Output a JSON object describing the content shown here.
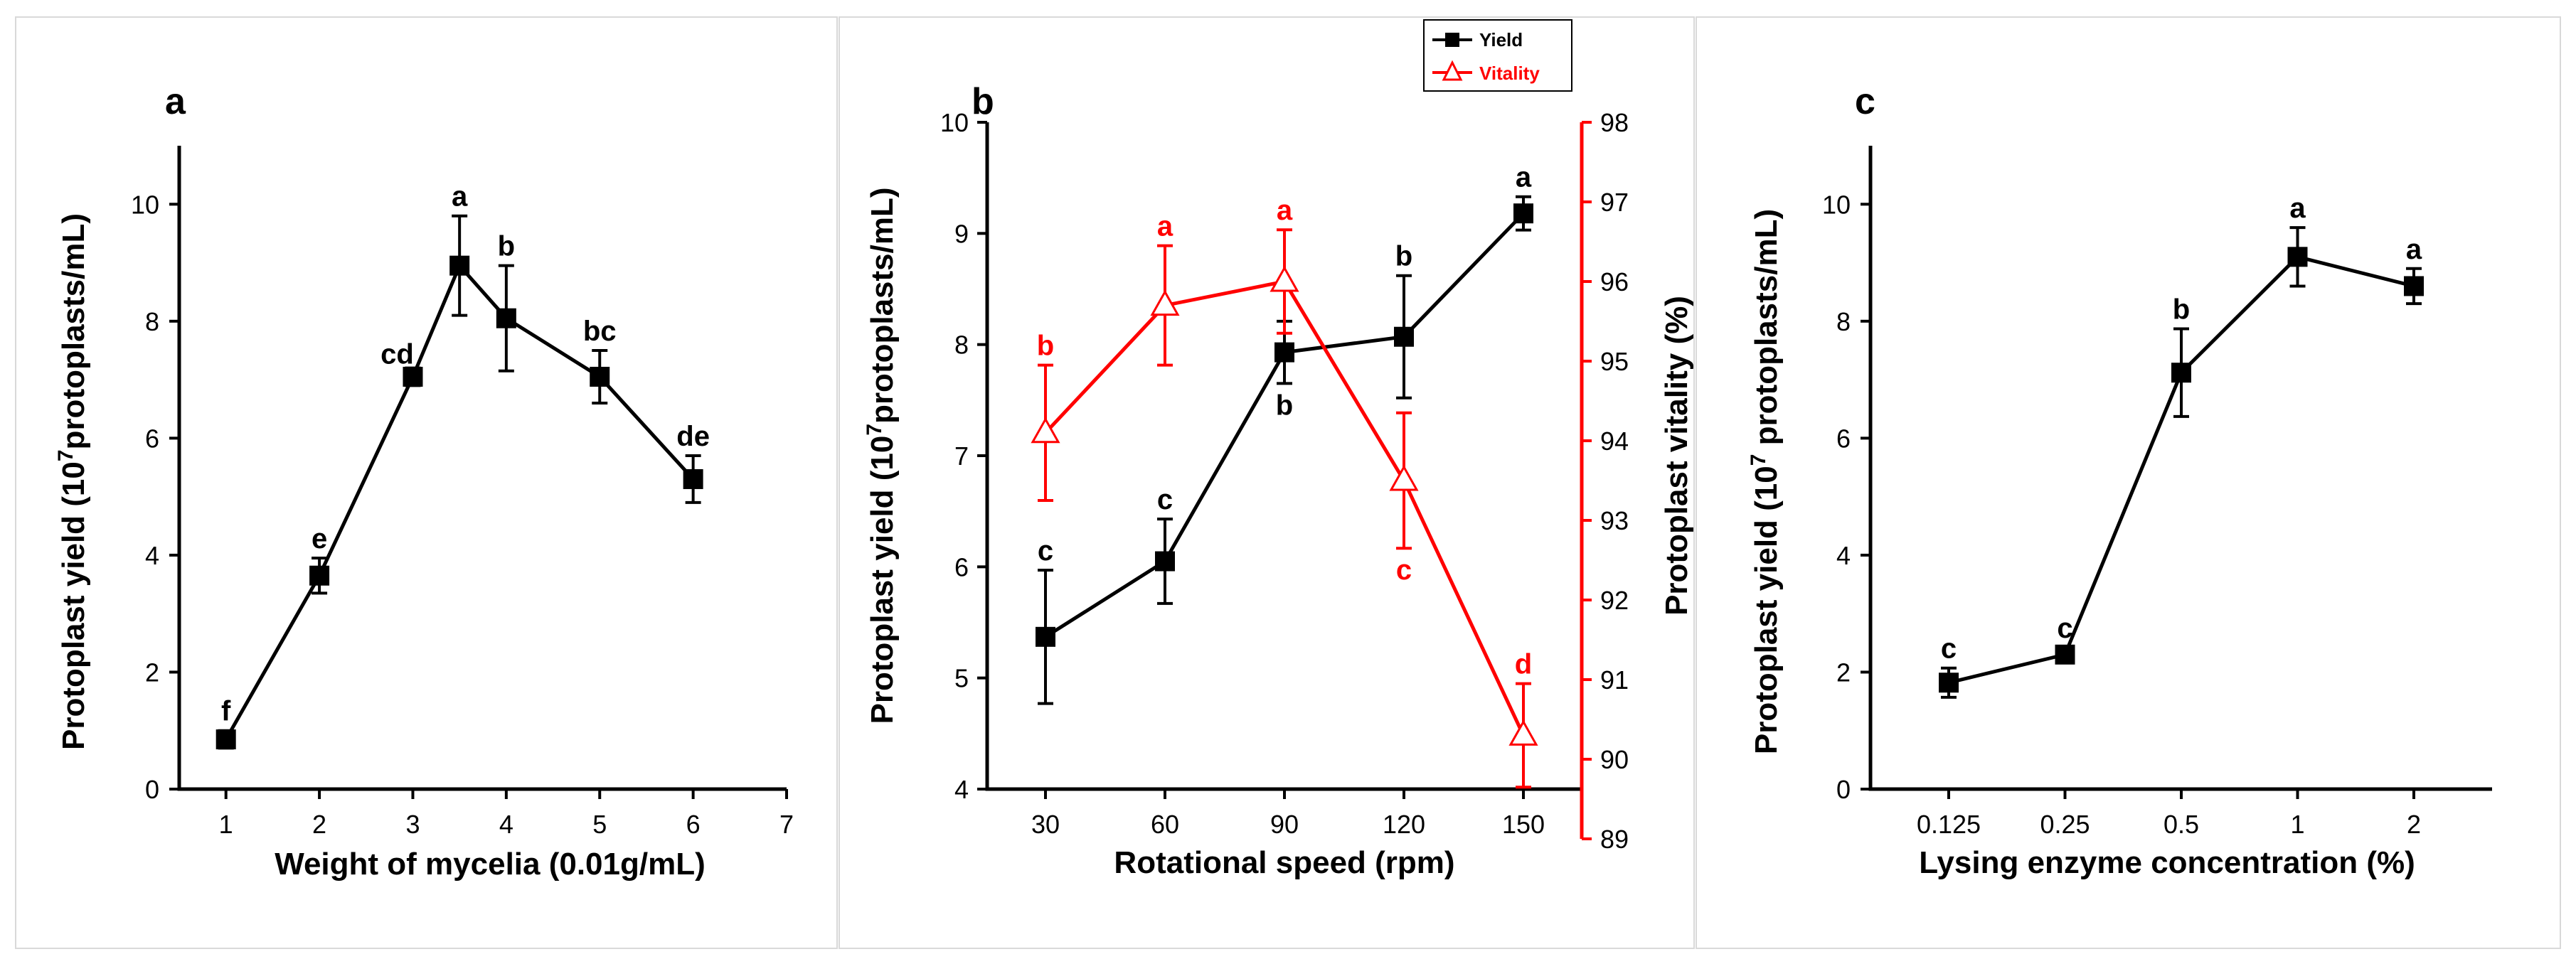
{
  "colors": {
    "yield": "#000000",
    "vitality": "#ff0000",
    "border": "#d9d9d9"
  },
  "chart_data": [
    {
      "panel": "a",
      "type": "line",
      "xlabel": "Weight of  mycelia (0.01g/mL)",
      "ylabel_prefix": "Protoplast yield (10",
      "ylabel_sup": "7",
      "ylabel_suffix": "protoplasts/mL)",
      "xlim": [
        0.5,
        7
      ],
      "ylim": [
        0,
        11
      ],
      "xticks": [
        1,
        2,
        3,
        4,
        5,
        6,
        7
      ],
      "yticks": [
        0,
        2,
        4,
        6,
        8,
        10
      ],
      "series": [
        {
          "name": "Yield",
          "x": [
            1,
            2,
            3,
            3.5,
            4,
            5,
            6
          ],
          "values": [
            0.85,
            3.65,
            7.05,
            8.95,
            8.05,
            7.05,
            5.3
          ],
          "errors": [
            0.15,
            0.3,
            0.15,
            0.85,
            0.9,
            0.45,
            0.4
          ],
          "labels": [
            "f",
            "e",
            "cd",
            "a",
            "b",
            "bc",
            "de"
          ],
          "label_pos": [
            "above",
            "above",
            "above-left",
            "above",
            "above",
            "above",
            "above"
          ]
        }
      ]
    },
    {
      "panel": "b",
      "type": "line",
      "xlabel": "Rotational speed (rpm)",
      "ylabel_prefix": "Protoplast yield (10",
      "ylabel_sup": "7",
      "ylabel_suffix": "protoplasts/mL)",
      "y2label": "Protoplast vitality (%)",
      "categories": [
        "30",
        "60",
        "90",
        "120",
        "150"
      ],
      "ylim": [
        4,
        10
      ],
      "yticks": [
        4,
        5,
        6,
        7,
        8,
        9,
        10
      ],
      "y2lim": [
        89,
        98
      ],
      "y2ticks": [
        89,
        90,
        91,
        92,
        93,
        94,
        95,
        96,
        97,
        98
      ],
      "legend": {
        "position": "top-right",
        "entries": [
          "Yield",
          "Vitality"
        ]
      },
      "series": [
        {
          "name": "Yield",
          "axis": "left",
          "values": [
            5.37,
            6.05,
            7.93,
            8.07,
            9.18
          ],
          "errors": [
            0.6,
            0.38,
            0.28,
            0.55,
            0.15
          ],
          "labels": [
            "c",
            "c",
            "b",
            "b",
            "a"
          ],
          "label_pos": [
            "above",
            "above",
            "below",
            "above",
            "above"
          ]
        },
        {
          "name": "Vitality",
          "axis": "right",
          "values": [
            94.1,
            95.7,
            96.0,
            93.5,
            90.3
          ],
          "errors": [
            0.85,
            0.75,
            0.65,
            0.85,
            0.65
          ],
          "labels": [
            "b",
            "a",
            "a",
            "c",
            "d"
          ],
          "label_pos": [
            "above",
            "above",
            "above",
            "below",
            "above"
          ]
        }
      ]
    },
    {
      "panel": "c",
      "type": "line",
      "xlabel": "Lysing enzyme concentration (%)",
      "ylabel_prefix": "Protoplast yield (10",
      "ylabel_sup": "7",
      "ylabel_suffix": " protoplasts/mL)",
      "categories": [
        "0.125",
        "0.25",
        "0.5",
        "1",
        "2"
      ],
      "ylim": [
        0,
        11
      ],
      "yticks": [
        0,
        2,
        4,
        6,
        8,
        10
      ],
      "series": [
        {
          "name": "Yield",
          "values": [
            1.82,
            2.3,
            7.12,
            9.1,
            8.6
          ],
          "errors": [
            0.25,
            0.12,
            0.75,
            0.5,
            0.3
          ],
          "labels": [
            "c",
            "c",
            "b",
            "a",
            "a"
          ],
          "label_pos": [
            "above",
            "above",
            "above",
            "above",
            "above"
          ]
        }
      ]
    }
  ]
}
